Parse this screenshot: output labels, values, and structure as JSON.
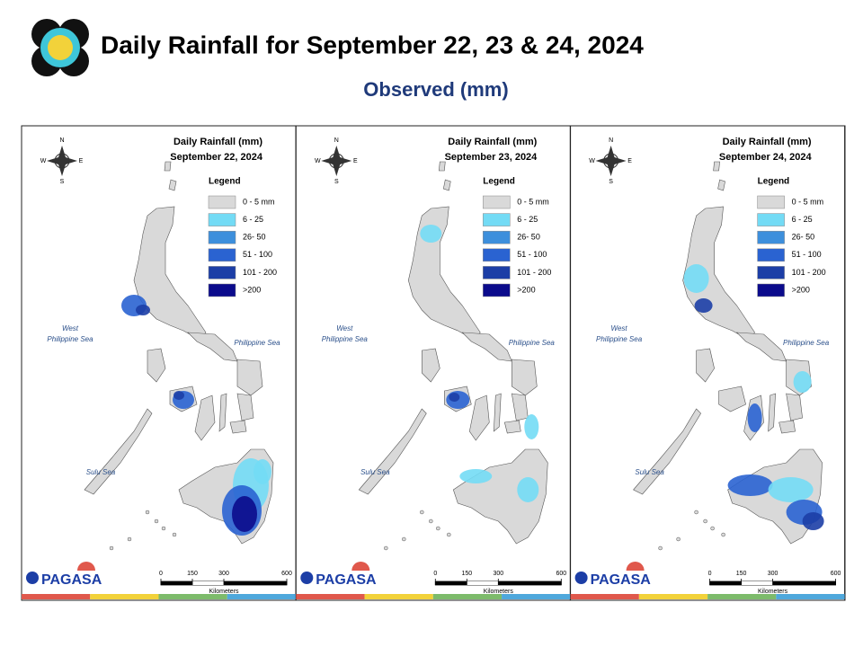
{
  "header": {
    "title": "Daily Rainfall for September 22, 23 & 24, 2024",
    "subtitle": "Observed (mm)"
  },
  "panels": [
    {
      "title": "Daily Rainfall (mm)",
      "date": "September 22, 2024",
      "legend_title": "Legend",
      "legend": [
        {
          "label": "0 - 5 mm",
          "color": "#d9d9d9"
        },
        {
          "label": "6 - 25",
          "color": "#73dbf5"
        },
        {
          "label": "26- 50",
          "color": "#3d8fdc"
        },
        {
          "label": "51 - 100",
          "color": "#2a63d1"
        },
        {
          "label": "101 - 200",
          "color": "#1c3ea6"
        },
        {
          "label": ">200",
          "color": "#0b0b8c"
        }
      ],
      "seas": {
        "west": [
          "West",
          "Philippine Sea"
        ],
        "east": "Philippine Sea",
        "sulu": "Sulu Sea"
      },
      "compass": {
        "n": "N",
        "s": "S",
        "e": "E",
        "w": "W"
      },
      "scale": {
        "ticks": [
          0,
          150,
          300,
          600
        ],
        "unit": "Kilometers"
      },
      "logo": "PAGASA"
    },
    {
      "title": "Daily Rainfall (mm)",
      "date": "September 23, 2024",
      "legend_title": "Legend",
      "legend": [
        {
          "label": "0 - 5 mm",
          "color": "#d9d9d9"
        },
        {
          "label": "6 - 25",
          "color": "#73dbf5"
        },
        {
          "label": "26- 50",
          "color": "#3d8fdc"
        },
        {
          "label": "51 - 100",
          "color": "#2a63d1"
        },
        {
          "label": "101 - 200",
          "color": "#1c3ea6"
        },
        {
          "label": ">200",
          "color": "#0b0b8c"
        }
      ],
      "seas": {
        "west": [
          "West",
          "Philippine Sea"
        ],
        "east": "Philippine Sea",
        "sulu": "Sulu Sea"
      },
      "compass": {
        "n": "N",
        "s": "S",
        "e": "E",
        "w": "W"
      },
      "scale": {
        "ticks": [
          0,
          150,
          300,
          600
        ],
        "unit": "Kilometers"
      },
      "logo": "PAGASA"
    },
    {
      "title": "Daily Rainfall (mm)",
      "date": "September 24, 2024",
      "legend_title": "Legend",
      "legend": [
        {
          "label": "0 - 5 mm",
          "color": "#d9d9d9"
        },
        {
          "label": "6 - 25",
          "color": "#73dbf5"
        },
        {
          "label": "26- 50",
          "color": "#3d8fdc"
        },
        {
          "label": "51 - 100",
          "color": "#2a63d1"
        },
        {
          "label": "101 - 200",
          "color": "#1c3ea6"
        },
        {
          "label": ">200",
          "color": "#0b0b8c"
        }
      ],
      "seas": {
        "west": [
          "West",
          "Philippine Sea"
        ],
        "east": "Philippine Sea",
        "sulu": "Sulu Sea"
      },
      "compass": {
        "n": "N",
        "s": "S",
        "e": "E",
        "w": "W"
      },
      "scale": {
        "ticks": [
          0,
          150,
          300,
          600
        ],
        "unit": "Kilometers"
      },
      "logo": "PAGASA"
    }
  ]
}
